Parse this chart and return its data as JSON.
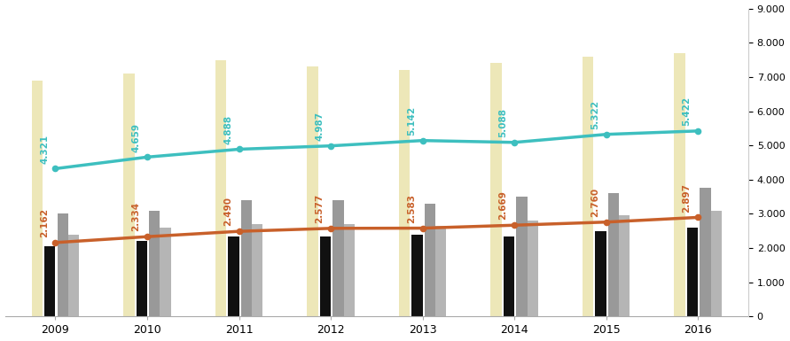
{
  "years": [
    2009,
    2010,
    2011,
    2012,
    2013,
    2014,
    2015,
    2016
  ],
  "turkey_line": [
    4321,
    4659,
    4888,
    4987,
    5142,
    5088,
    5322,
    5422
  ],
  "region_line": [
    2162,
    2334,
    2490,
    2577,
    2583,
    2669,
    2760,
    2897
  ],
  "bars": {
    "kocaeli": [
      6900,
      7100,
      7500,
      7300,
      7200,
      7400,
      7600,
      7700
    ],
    "sakarya": [
      2050,
      2200,
      2350,
      2350,
      2400,
      2350,
      2500,
      2600
    ],
    "bolu": [
      3000,
      3100,
      3400,
      3400,
      3300,
      3500,
      3600,
      3750
    ],
    "yalova": [
      2400,
      2600,
      2700,
      2700,
      2650,
      2800,
      2950,
      3100
    ]
  },
  "bar_colors": {
    "kocaeli": "#ede7b8",
    "sakarya": "#111111",
    "bolu": "#999999",
    "yalova": "#b5b5b5"
  },
  "turkey_color": "#3dbfbf",
  "region_color": "#c8602a",
  "ylim": [
    0,
    9000
  ],
  "yticks_right": [
    0,
    1000,
    2000,
    3000,
    4000,
    5000,
    6000,
    7000,
    8000,
    9000
  ],
  "background_color": "#ffffff",
  "label_fontsize": 7.5,
  "turkey_label_color": "#3dbfbf",
  "region_label_color": "#c8602a"
}
